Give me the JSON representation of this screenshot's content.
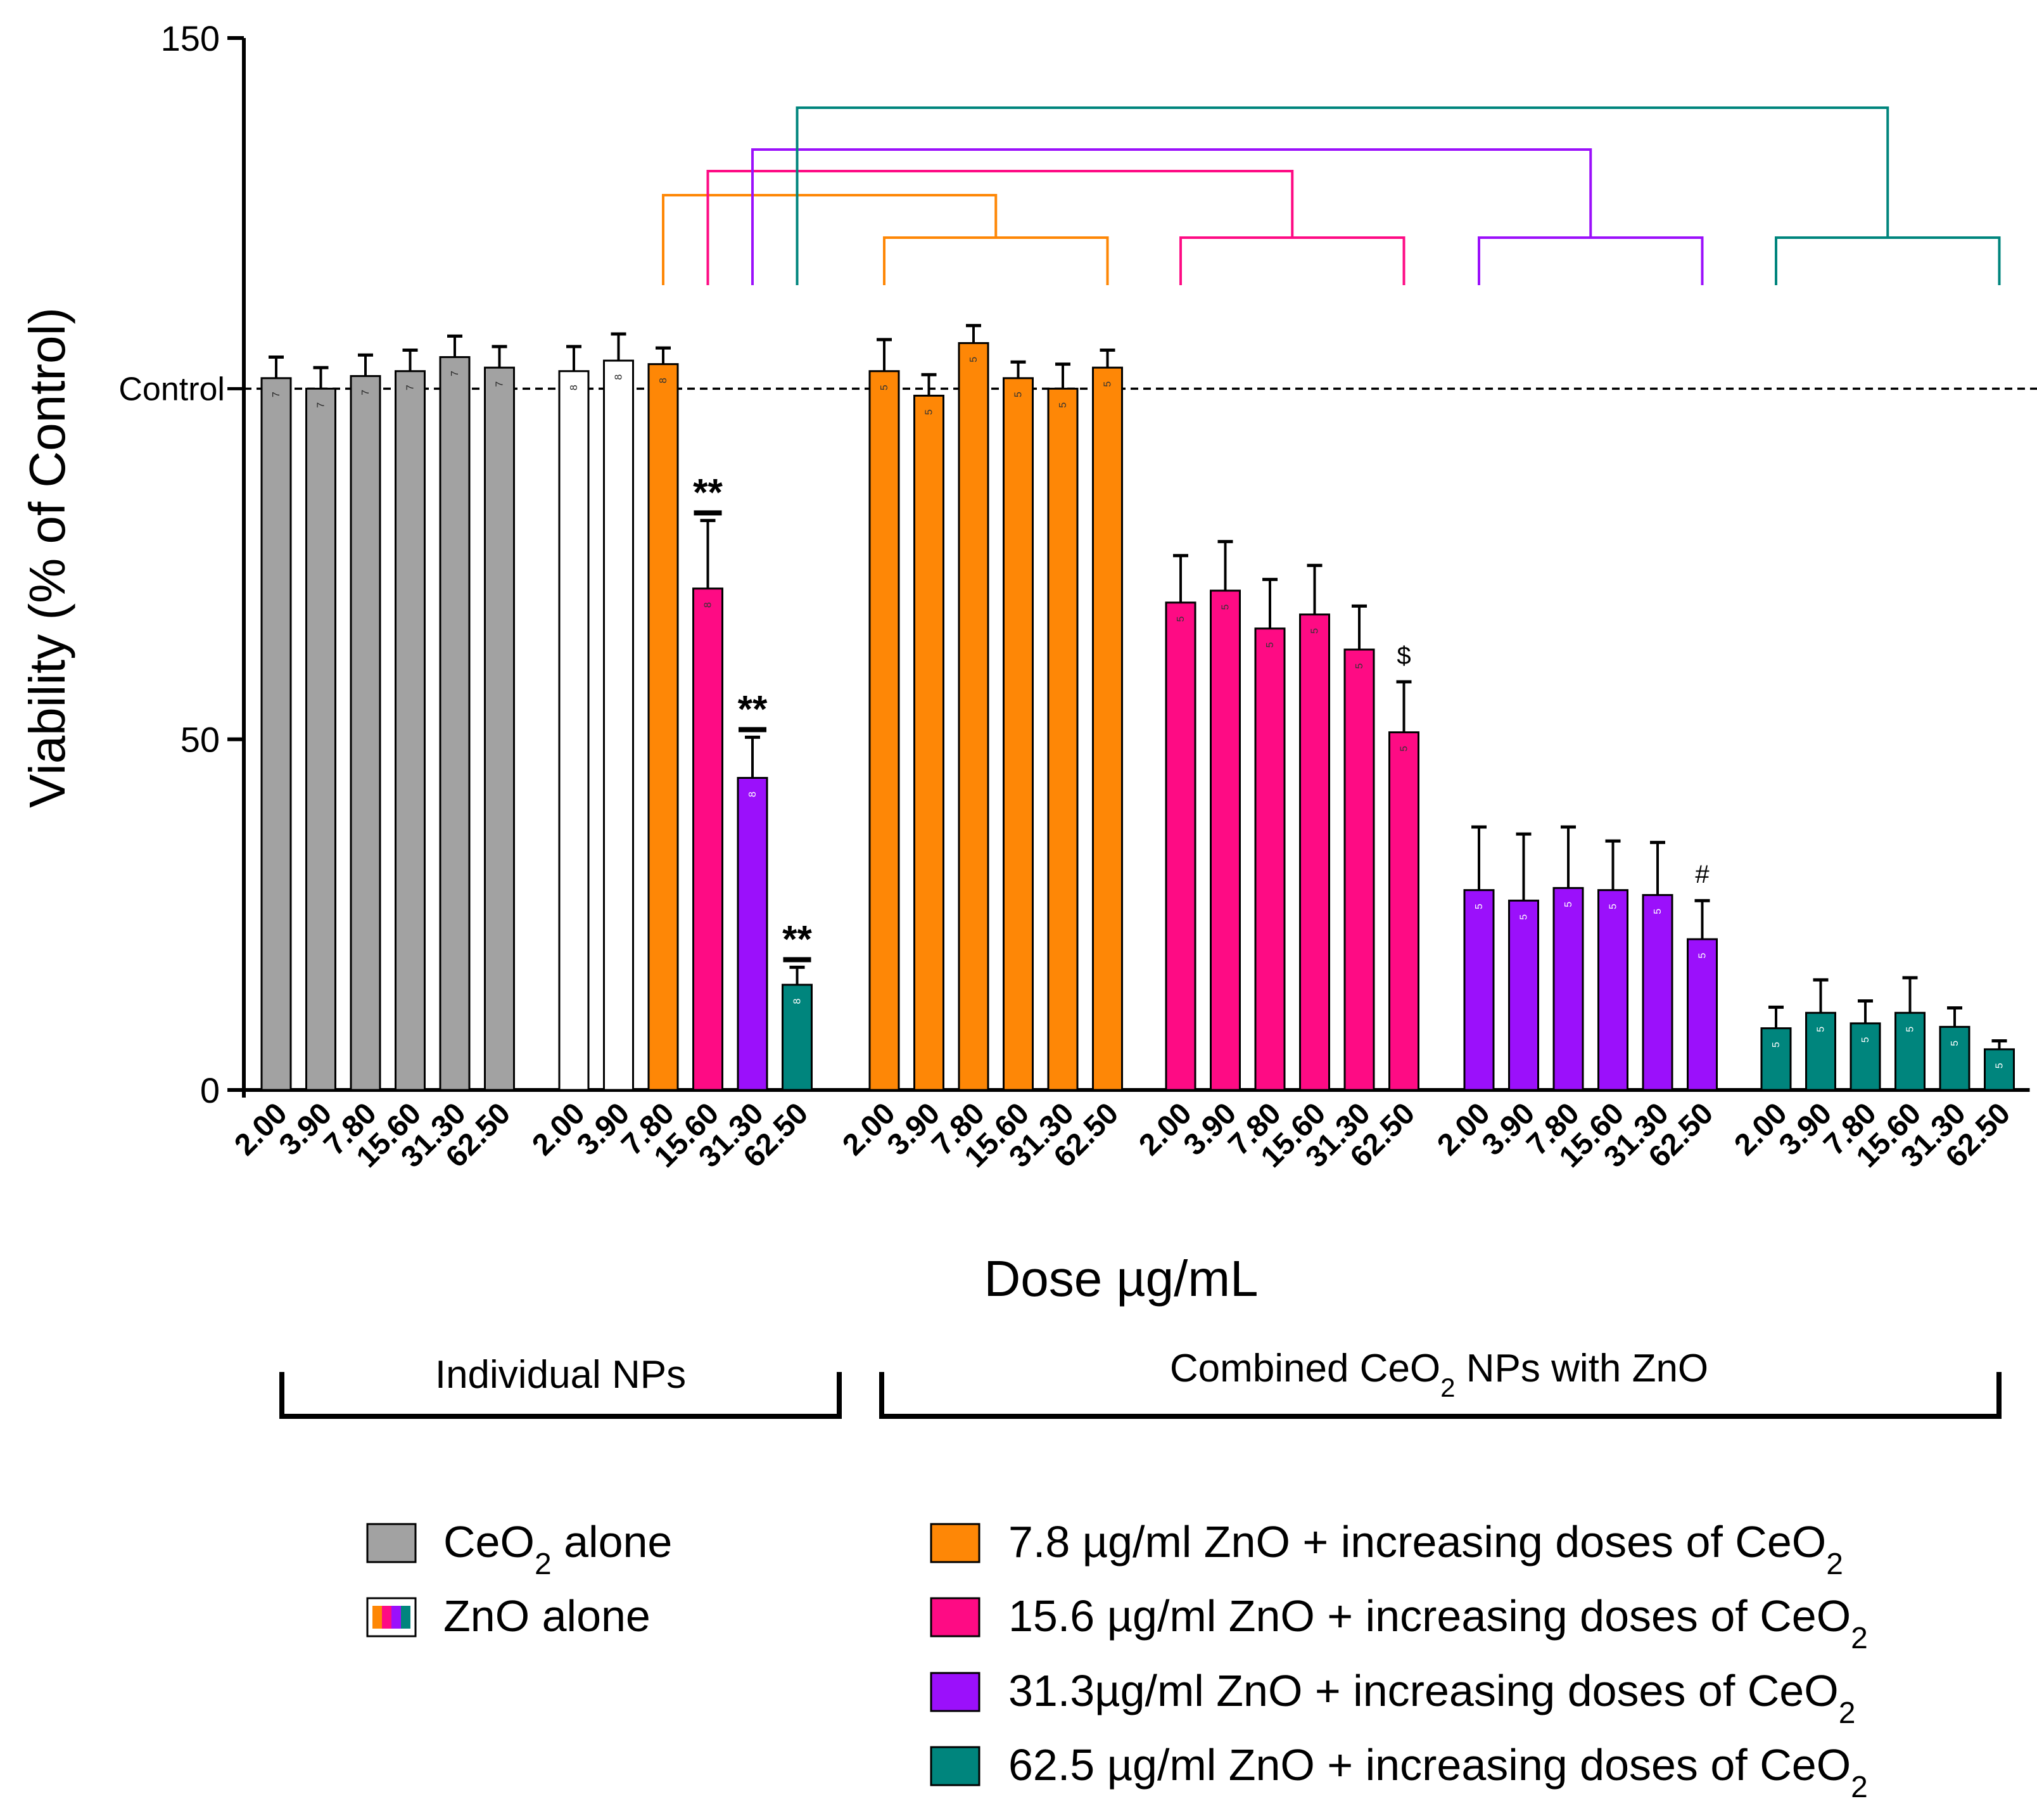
{
  "chart_data": {
    "type": "bar",
    "ylabel": "Viability (% of Control)",
    "xlabel": "Dose µg/mL",
    "ylim": [
      0,
      150
    ],
    "yticks": [
      0,
      50,
      150
    ],
    "control_label": "Control",
    "control_value": 100,
    "group_labels": {
      "individual": "Individual NPs",
      "combined_prefix": "Combined CeO",
      "combined_sub": "2",
      "combined_suffix": " NPs with ZnO"
    },
    "colors": {
      "ceo2": "#a2a2a2",
      "zno": "#ffffff",
      "zno78": "#fe8706",
      "zno156": "#fe0b84",
      "zno313": "#9b10fb",
      "zno625": "#00857d"
    },
    "groups": [
      {
        "name": "CeO2 alone",
        "bars": [
          {
            "dose": "2.00",
            "value": 101.5,
            "err": 3,
            "n": "7",
            "color": "ceo2"
          },
          {
            "dose": "3.90",
            "value": 100.0,
            "err": 3,
            "n": "7",
            "color": "ceo2"
          },
          {
            "dose": "7.80",
            "value": 101.8,
            "err": 3,
            "n": "7",
            "color": "ceo2"
          },
          {
            "dose": "15.60",
            "value": 102.5,
            "err": 3,
            "n": "7",
            "color": "ceo2"
          },
          {
            "dose": "31.30",
            "value": 104.5,
            "err": 3,
            "n": "7",
            "color": "ceo2"
          },
          {
            "dose": "62.50",
            "value": 103.0,
            "err": 3,
            "n": "7",
            "color": "ceo2"
          }
        ]
      },
      {
        "name": "ZnO alone",
        "bars": [
          {
            "dose": "2.00",
            "value": 102.5,
            "err": 3.5,
            "n": "8",
            "color": "zno"
          },
          {
            "dose": "3.90",
            "value": 104.0,
            "err": 3.8,
            "n": "8",
            "color": "zno"
          },
          {
            "dose": "7.80",
            "value": 103.5,
            "err": 2.3,
            "n": "8",
            "color": "zno78"
          },
          {
            "dose": "15.60",
            "value": 71.5,
            "err": 9.7,
            "n": "8",
            "color": "zno156",
            "sig": "**"
          },
          {
            "dose": "31.30",
            "value": 44.5,
            "err": 5.8,
            "n": "8",
            "color": "zno313",
            "sig": "**"
          },
          {
            "dose": "62.50",
            "value": 15.0,
            "err": 2.5,
            "n": "8",
            "color": "zno625",
            "sig": "**"
          }
        ]
      },
      {
        "name": "7.8 µg/ml ZnO + increasing doses of CeO2",
        "bars": [
          {
            "dose": "2.00",
            "value": 102.5,
            "err": 4.5,
            "n": "5",
            "color": "zno78"
          },
          {
            "dose": "3.90",
            "value": 99.0,
            "err": 3.0,
            "n": "5",
            "color": "zno78"
          },
          {
            "dose": "7.80",
            "value": 106.5,
            "err": 2.5,
            "n": "5",
            "color": "zno78"
          },
          {
            "dose": "15.60",
            "value": 101.5,
            "err": 2.3,
            "n": "5",
            "color": "zno78"
          },
          {
            "dose": "31.30",
            "value": 100.0,
            "err": 3.5,
            "n": "5",
            "color": "zno78"
          },
          {
            "dose": "62.50",
            "value": 103.0,
            "err": 2.5,
            "n": "5",
            "color": "zno78"
          }
        ]
      },
      {
        "name": "15.6 µg/ml ZnO + increasing doses of CeO2",
        "bars": [
          {
            "dose": "2.00",
            "value": 69.5,
            "err": 6.7,
            "n": "5",
            "color": "zno156"
          },
          {
            "dose": "3.90",
            "value": 71.2,
            "err": 7.0,
            "n": "5",
            "color": "zno156"
          },
          {
            "dose": "7.80",
            "value": 65.8,
            "err": 7.0,
            "n": "5",
            "color": "zno156"
          },
          {
            "dose": "15.60",
            "value": 67.8,
            "err": 7.0,
            "n": "5",
            "color": "zno156"
          },
          {
            "dose": "31.30",
            "value": 62.8,
            "err": 6.2,
            "n": "5",
            "color": "zno156"
          },
          {
            "dose": "62.50",
            "value": 51.0,
            "err": 7.2,
            "n": "5",
            "color": "zno156",
            "sig": "$"
          }
        ]
      },
      {
        "name": "31.3µg/ml ZnO + increasing doses of CeO2",
        "bars": [
          {
            "dose": "2.00",
            "value": 28.5,
            "err": 9.0,
            "n": "5",
            "color": "zno313"
          },
          {
            "dose": "3.90",
            "value": 27.0,
            "err": 9.5,
            "n": "5",
            "color": "zno313"
          },
          {
            "dose": "7.80",
            "value": 28.8,
            "err": 8.7,
            "n": "5",
            "color": "zno313"
          },
          {
            "dose": "15.60",
            "value": 28.5,
            "err": 7.0,
            "n": "5",
            "color": "zno313"
          },
          {
            "dose": "31.30",
            "value": 27.8,
            "err": 7.5,
            "n": "5",
            "color": "zno313"
          },
          {
            "dose": "62.50",
            "value": 21.5,
            "err": 5.5,
            "n": "5",
            "color": "zno313",
            "sig": "#"
          }
        ]
      },
      {
        "name": "62.5 µg/ml ZnO + increasing doses of CeO2",
        "bars": [
          {
            "dose": "2.00",
            "value": 8.8,
            "err": 3.0,
            "n": "5",
            "color": "zno625"
          },
          {
            "dose": "3.90",
            "value": 11.0,
            "err": 4.7,
            "n": "5",
            "color": "zno625"
          },
          {
            "dose": "7.80",
            "value": 9.5,
            "err": 3.2,
            "n": "5",
            "color": "zno625"
          },
          {
            "dose": "15.60",
            "value": 11.0,
            "err": 5.0,
            "n": "5",
            "color": "zno625"
          },
          {
            "dose": "31.30",
            "value": 9.0,
            "err": 2.7,
            "n": "5",
            "color": "zno625"
          },
          {
            "dose": "62.50",
            "value": 5.8,
            "err": 1.2,
            "n": "5",
            "color": "zno625"
          }
        ]
      }
    ],
    "legend": {
      "left": [
        {
          "pre": "CeO",
          "sub": "2",
          "post": " alone",
          "swatch": "ceo2"
        },
        {
          "pre": "ZnO alone",
          "sub": "",
          "post": "",
          "swatch": "multi"
        }
      ],
      "right": [
        {
          "pre": "7.8 µg/ml ZnO + increasing doses of CeO",
          "sub": "2",
          "post": "",
          "swatch": "zno78"
        },
        {
          "pre": "15.6 µg/ml ZnO + increasing doses of CeO",
          "sub": "2",
          "post": "",
          "swatch": "zno156"
        },
        {
          "pre": "31.3µg/ml ZnO + increasing doses of CeO",
          "sub": "2",
          "post": "",
          "swatch": "zno313"
        },
        {
          "pre": "62.5 µg/ml ZnO + increasing doses of CeO",
          "sub": "2",
          "post": "",
          "swatch": "zno625"
        }
      ]
    },
    "comparison_brackets": [
      {
        "from": "ZnO alone 7.80",
        "to_group": "7.8 µg/ml ZnO + increasing doses of CeO2",
        "color": "zno78"
      },
      {
        "from": "ZnO alone 15.60",
        "to_group": "15.6 µg/ml ZnO + increasing doses of CeO2",
        "color": "zno156"
      },
      {
        "from": "ZnO alone 31.30",
        "to_group": "31.3µg/ml ZnO + increasing doses of CeO2",
        "color": "zno313"
      },
      {
        "from": "ZnO alone 62.50",
        "to_group": "62.5 µg/ml ZnO + increasing doses of CeO2",
        "color": "zno625"
      }
    ]
  }
}
